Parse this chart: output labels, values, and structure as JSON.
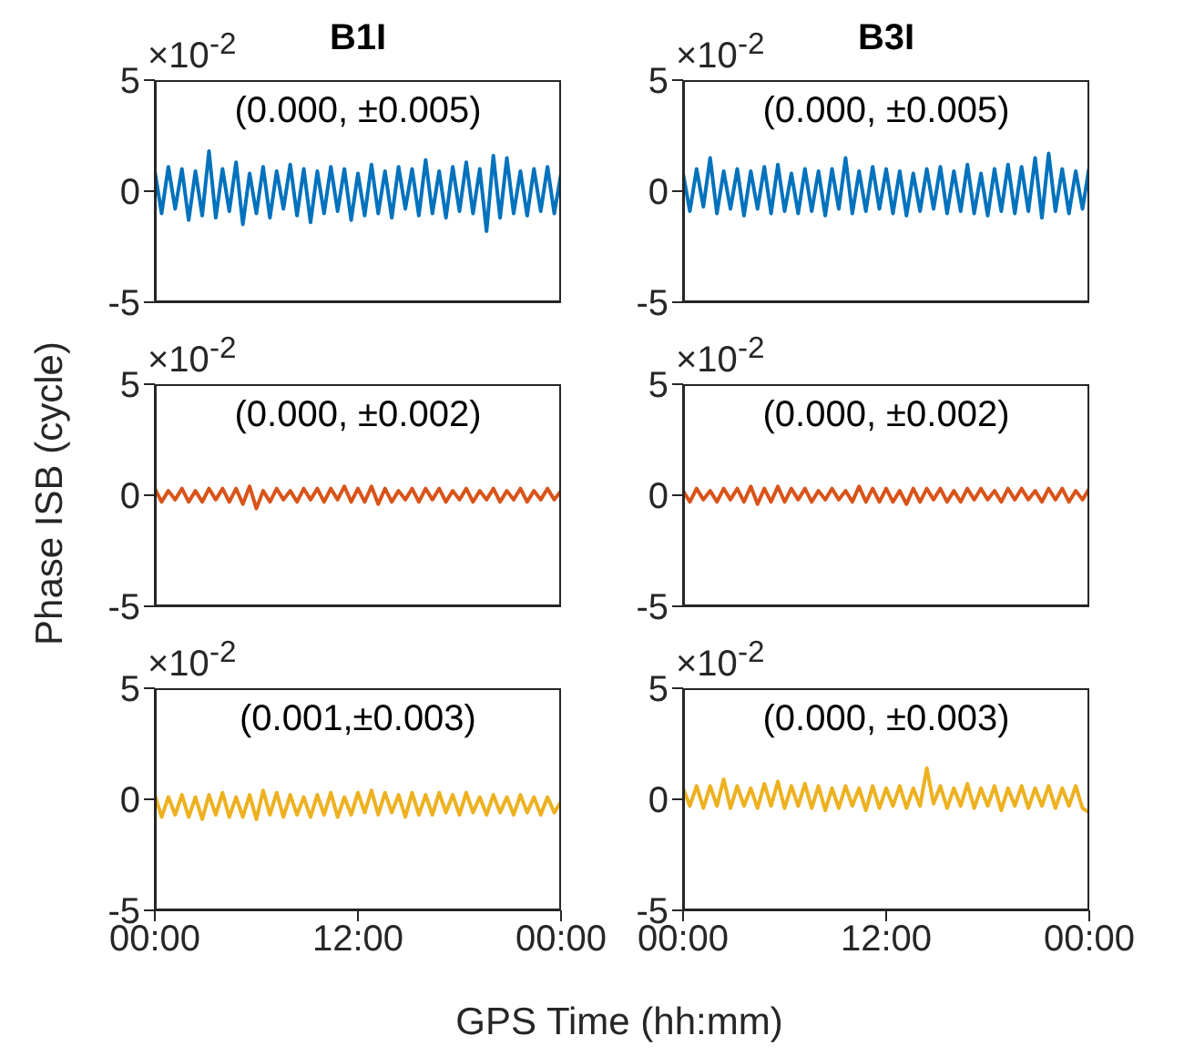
{
  "chart_data": [
    {
      "type": "line",
      "title": "B1I",
      "annotations": [
        "×10$^{-2}$",
        "(0.000, ±0.005)"
      ],
      "color": "#0072bd",
      "tick_labels": "y",
      "xlim": [
        0,
        24
      ],
      "xticks": [
        {
          "value": 0,
          "label": null
        },
        {
          "value": 12,
          "label": null
        },
        {
          "value": 24,
          "label": null
        }
      ],
      "ylim": [
        -5,
        5
      ],
      "yticks": [
        -5,
        0,
        5
      ],
      "x": [
        0,
        0.4,
        0.8,
        1.2,
        1.6,
        2,
        2.4,
        2.8,
        3.2,
        3.6,
        4,
        4.4,
        4.8,
        5.2,
        5.6,
        6,
        6.4,
        6.8,
        7.2,
        7.6,
        8,
        8.4,
        8.8,
        9.2,
        9.6,
        10,
        10.4,
        10.8,
        11.2,
        11.6,
        12,
        12.4,
        12.8,
        13.2,
        13.6,
        14,
        14.4,
        14.8,
        15.2,
        15.6,
        16,
        16.4,
        16.8,
        17.2,
        17.6,
        18,
        18.4,
        18.8,
        19.2,
        19.6,
        20,
        20.4,
        20.8,
        21.2,
        21.6,
        22,
        22.4,
        22.8,
        23.2,
        23.6,
        24
      ],
      "values": [
        0.9,
        -1.0,
        1.1,
        -0.8,
        1.0,
        -1.3,
        0.9,
        -1.1,
        1.8,
        -1.2,
        1.0,
        -0.9,
        1.3,
        -1.5,
        0.8,
        -1.0,
        1.1,
        -1.2,
        0.9,
        -0.8,
        1.2,
        -1.1,
        1.0,
        -1.4,
        0.9,
        -1.0,
        1.1,
        -0.9,
        1.0,
        -1.3,
        0.8,
        -1.1,
        1.2,
        -1.0,
        0.9,
        -1.2,
        1.1,
        -0.8,
        1.0,
        -1.1,
        1.4,
        -1.0,
        0.9,
        -1.2,
        1.1,
        -0.9,
        1.3,
        -1.0,
        1.0,
        -1.8,
        1.6,
        -1.2,
        1.5,
        -1.0,
        0.9,
        -1.1,
        1.0,
        -0.9,
        1.1,
        -1.0,
        0.8
      ]
    },
    {
      "type": "line",
      "title": "B3I",
      "annotations": [
        "×10$^{-2}$",
        "(0.000, ±0.005)"
      ],
      "color": "#0072bd",
      "tick_labels": "y",
      "xlim": [
        0,
        24
      ],
      "xticks": [
        {
          "value": 0,
          "label": null
        },
        {
          "value": 12,
          "label": null
        },
        {
          "value": 24,
          "label": null
        }
      ],
      "ylim": [
        -5,
        5
      ],
      "yticks": [
        -5,
        0,
        5
      ],
      "x": [
        0,
        0.4,
        0.8,
        1.2,
        1.6,
        2,
        2.4,
        2.8,
        3.2,
        3.6,
        4,
        4.4,
        4.8,
        5.2,
        5.6,
        6,
        6.4,
        6.8,
        7.2,
        7.6,
        8,
        8.4,
        8.8,
        9.2,
        9.6,
        10,
        10.4,
        10.8,
        11.2,
        11.6,
        12,
        12.4,
        12.8,
        13.2,
        13.6,
        14,
        14.4,
        14.8,
        15.2,
        15.6,
        16,
        16.4,
        16.8,
        17.2,
        17.6,
        18,
        18.4,
        18.8,
        19.2,
        19.6,
        20,
        20.4,
        20.8,
        21.2,
        21.6,
        22,
        22.4,
        22.8,
        23.2,
        23.6,
        24
      ],
      "values": [
        0.8,
        -0.9,
        1.0,
        -0.7,
        1.5,
        -1.0,
        0.9,
        -0.8,
        1.0,
        -1.1,
        0.9,
        -0.8,
        1.1,
        -1.0,
        1.2,
        -0.9,
        0.8,
        -1.0,
        1.0,
        -0.9,
        0.9,
        -1.1,
        1.0,
        -0.8,
        1.5,
        -1.0,
        0.9,
        -0.9,
        1.1,
        -0.8,
        1.0,
        -1.0,
        0.9,
        -1.1,
        0.8,
        -0.9,
        1.0,
        -0.8,
        1.1,
        -1.0,
        0.9,
        -0.9,
        1.2,
        -1.0,
        0.8,
        -1.1,
        1.0,
        -0.9,
        1.2,
        -1.0,
        1.1,
        -0.9,
        1.5,
        -1.2,
        1.7,
        -0.9,
        1.0,
        -1.0,
        0.9,
        -0.8,
        1.1
      ]
    },
    {
      "type": "line",
      "ylabel": "Phase ISB (cycle)",
      "annotations": [
        "×10$^{-2}$",
        "(0.000, ±0.002)"
      ],
      "color": "#d95319",
      "tick_labels": "y",
      "xlim": [
        0,
        24
      ],
      "xticks": [
        {
          "value": 0,
          "label": null
        },
        {
          "value": 12,
          "label": null
        },
        {
          "value": 24,
          "label": null
        }
      ],
      "ylim": [
        -5,
        5
      ],
      "yticks": [
        -5,
        0,
        5
      ],
      "x": [
        0,
        0.4,
        0.8,
        1.2,
        1.6,
        2,
        2.4,
        2.8,
        3.2,
        3.6,
        4,
        4.4,
        4.8,
        5.2,
        5.6,
        6,
        6.4,
        6.8,
        7.2,
        7.6,
        8,
        8.4,
        8.8,
        9.2,
        9.6,
        10,
        10.4,
        10.8,
        11.2,
        11.6,
        12,
        12.4,
        12.8,
        13.2,
        13.6,
        14,
        14.4,
        14.8,
        15.2,
        15.6,
        16,
        16.4,
        16.8,
        17.2,
        17.6,
        18,
        18.4,
        18.8,
        19.2,
        19.6,
        20,
        20.4,
        20.8,
        21.2,
        21.6,
        22,
        22.4,
        22.8,
        23.2,
        23.6,
        24
      ],
      "values": [
        0.3,
        -0.3,
        0.2,
        -0.2,
        0.3,
        -0.3,
        0.2,
        -0.3,
        0.3,
        -0.2,
        0.3,
        -0.3,
        0.3,
        -0.4,
        0.4,
        -0.6,
        0.2,
        -0.3,
        0.3,
        -0.2,
        0.2,
        -0.3,
        0.3,
        -0.2,
        0.3,
        -0.3,
        0.3,
        -0.2,
        0.4,
        -0.3,
        0.3,
        -0.3,
        0.4,
        -0.4,
        0.3,
        -0.3,
        0.2,
        -0.2,
        0.3,
        -0.3,
        0.3,
        -0.2,
        0.3,
        -0.3,
        0.2,
        -0.2,
        0.3,
        -0.3,
        0.2,
        -0.2,
        0.3,
        -0.3,
        0.2,
        -0.2,
        0.3,
        -0.3,
        0.2,
        -0.2,
        0.3,
        -0.2,
        0.2
      ]
    },
    {
      "type": "line",
      "annotations": [
        "×10$^{-2}$",
        "(0.000, ±0.002)"
      ],
      "color": "#d95319",
      "tick_labels": "y",
      "xlim": [
        0,
        24
      ],
      "xticks": [
        {
          "value": 0,
          "label": null
        },
        {
          "value": 12,
          "label": null
        },
        {
          "value": 24,
          "label": null
        }
      ],
      "ylim": [
        -5,
        5
      ],
      "yticks": [
        -5,
        0,
        5
      ],
      "x": [
        0,
        0.4,
        0.8,
        1.2,
        1.6,
        2,
        2.4,
        2.8,
        3.2,
        3.6,
        4,
        4.4,
        4.8,
        5.2,
        5.6,
        6,
        6.4,
        6.8,
        7.2,
        7.6,
        8,
        8.4,
        8.8,
        9.2,
        9.6,
        10,
        10.4,
        10.8,
        11.2,
        11.6,
        12,
        12.4,
        12.8,
        13.2,
        13.6,
        14,
        14.4,
        14.8,
        15.2,
        15.6,
        16,
        16.4,
        16.8,
        17.2,
        17.6,
        18,
        18.4,
        18.8,
        19.2,
        19.6,
        20,
        20.4,
        20.8,
        21.2,
        21.6,
        22,
        22.4,
        22.8,
        23.2,
        23.6,
        24
      ],
      "values": [
        0.2,
        -0.3,
        0.3,
        -0.2,
        0.2,
        -0.3,
        0.3,
        -0.2,
        0.3,
        -0.3,
        0.4,
        -0.4,
        0.3,
        -0.3,
        0.4,
        -0.3,
        0.3,
        -0.2,
        0.3,
        -0.3,
        0.2,
        -0.2,
        0.3,
        -0.2,
        0.2,
        -0.3,
        0.4,
        -0.3,
        0.3,
        -0.3,
        0.3,
        -0.3,
        0.2,
        -0.4,
        0.3,
        -0.3,
        0.3,
        -0.2,
        0.3,
        -0.3,
        0.2,
        -0.3,
        0.3,
        -0.2,
        0.3,
        -0.2,
        0.2,
        -0.3,
        0.3,
        -0.2,
        0.3,
        -0.2,
        0.2,
        -0.3,
        0.3,
        -0.2,
        0.3,
        -0.3,
        0.2,
        -0.2,
        0.3
      ]
    },
    {
      "type": "line",
      "xlabel": "GPS Time (hh:mm)",
      "annotations": [
        "×10$^{-2}$",
        "(0.001,±0.003)"
      ],
      "color": "#edb120",
      "xlim": [
        0,
        24
      ],
      "xticks": [
        {
          "value": 0,
          "label": "00:00"
        },
        {
          "value": 12,
          "label": "12:00"
        },
        {
          "value": 24,
          "label": "00:00"
        }
      ],
      "ylim": [
        -5,
        5
      ],
      "yticks": [
        -5,
        0,
        5
      ],
      "x": [
        0,
        0.4,
        0.8,
        1.2,
        1.6,
        2,
        2.4,
        2.8,
        3.2,
        3.6,
        4,
        4.4,
        4.8,
        5.2,
        5.6,
        6,
        6.4,
        6.8,
        7.2,
        7.6,
        8,
        8.4,
        8.8,
        9.2,
        9.6,
        10,
        10.4,
        10.8,
        11.2,
        11.6,
        12,
        12.4,
        12.8,
        13.2,
        13.6,
        14,
        14.4,
        14.8,
        15.2,
        15.6,
        16,
        16.4,
        16.8,
        17.2,
        17.6,
        18,
        18.4,
        18.8,
        19.2,
        19.6,
        20,
        20.4,
        20.8,
        21.2,
        21.6,
        22,
        22.4,
        22.8,
        23.2,
        23.6,
        24
      ],
      "values": [
        0.2,
        -0.8,
        0.1,
        -0.7,
        0.2,
        -0.8,
        0.1,
        -0.9,
        0.2,
        -0.7,
        0.3,
        -0.8,
        0.1,
        -0.8,
        0.2,
        -0.9,
        0.4,
        -0.7,
        0.3,
        -0.8,
        0.2,
        -0.7,
        0.1,
        -0.8,
        0.2,
        -0.7,
        0.3,
        -0.8,
        0.1,
        -0.7,
        0.3,
        -0.6,
        0.4,
        -0.7,
        0.3,
        -0.6,
        0.2,
        -0.8,
        0.3,
        -0.7,
        0.2,
        -0.7,
        0.3,
        -0.6,
        0.2,
        -0.7,
        0.3,
        -0.6,
        0.1,
        -0.7,
        0.2,
        -0.6,
        0.1,
        -0.7,
        0.2,
        -0.6,
        0.1,
        -0.7,
        0.1,
        -0.6,
        -0.1
      ]
    },
    {
      "type": "line",
      "annotations": [
        "×10$^{-2}$",
        "(0.000, ±0.003)"
      ],
      "color": "#edb120",
      "xlim": [
        0,
        24
      ],
      "xticks": [
        {
          "value": 0,
          "label": "00:00"
        },
        {
          "value": 12,
          "label": "12:00"
        },
        {
          "value": 24,
          "label": "00:00"
        }
      ],
      "ylim": [
        -5,
        5
      ],
      "yticks": [
        -5,
        0,
        5
      ],
      "x": [
        0,
        0.4,
        0.8,
        1.2,
        1.6,
        2,
        2.4,
        2.8,
        3.2,
        3.6,
        4,
        4.4,
        4.8,
        5.2,
        5.6,
        6,
        6.4,
        6.8,
        7.2,
        7.6,
        8,
        8.4,
        8.8,
        9.2,
        9.6,
        10,
        10.4,
        10.8,
        11.2,
        11.6,
        12,
        12.4,
        12.8,
        13.2,
        13.6,
        14,
        14.4,
        14.8,
        15.2,
        15.6,
        16,
        16.4,
        16.8,
        17.2,
        17.6,
        18,
        18.4,
        18.8,
        19.2,
        19.6,
        20,
        20.4,
        20.8,
        21.2,
        21.6,
        22,
        22.4,
        22.8,
        23.2,
        23.6,
        24
      ],
      "values": [
        0.5,
        -0.3,
        0.6,
        -0.4,
        0.6,
        -0.3,
        0.9,
        -0.4,
        0.6,
        -0.3,
        0.5,
        -0.4,
        0.7,
        -0.3,
        0.8,
        -0.4,
        0.6,
        -0.3,
        0.7,
        -0.4,
        0.6,
        -0.5,
        0.5,
        -0.4,
        0.6,
        -0.3,
        0.5,
        -0.5,
        0.6,
        -0.4,
        0.5,
        -0.3,
        0.6,
        -0.4,
        0.5,
        -0.3,
        1.4,
        -0.2,
        0.6,
        -0.4,
        0.5,
        -0.3,
        0.7,
        -0.4,
        0.5,
        -0.3,
        0.6,
        -0.5,
        0.5,
        -0.3,
        0.6,
        -0.4,
        0.5,
        -0.3,
        0.6,
        -0.4,
        0.5,
        -0.3,
        0.6,
        -0.4,
        -0.6
      ]
    }
  ]
}
